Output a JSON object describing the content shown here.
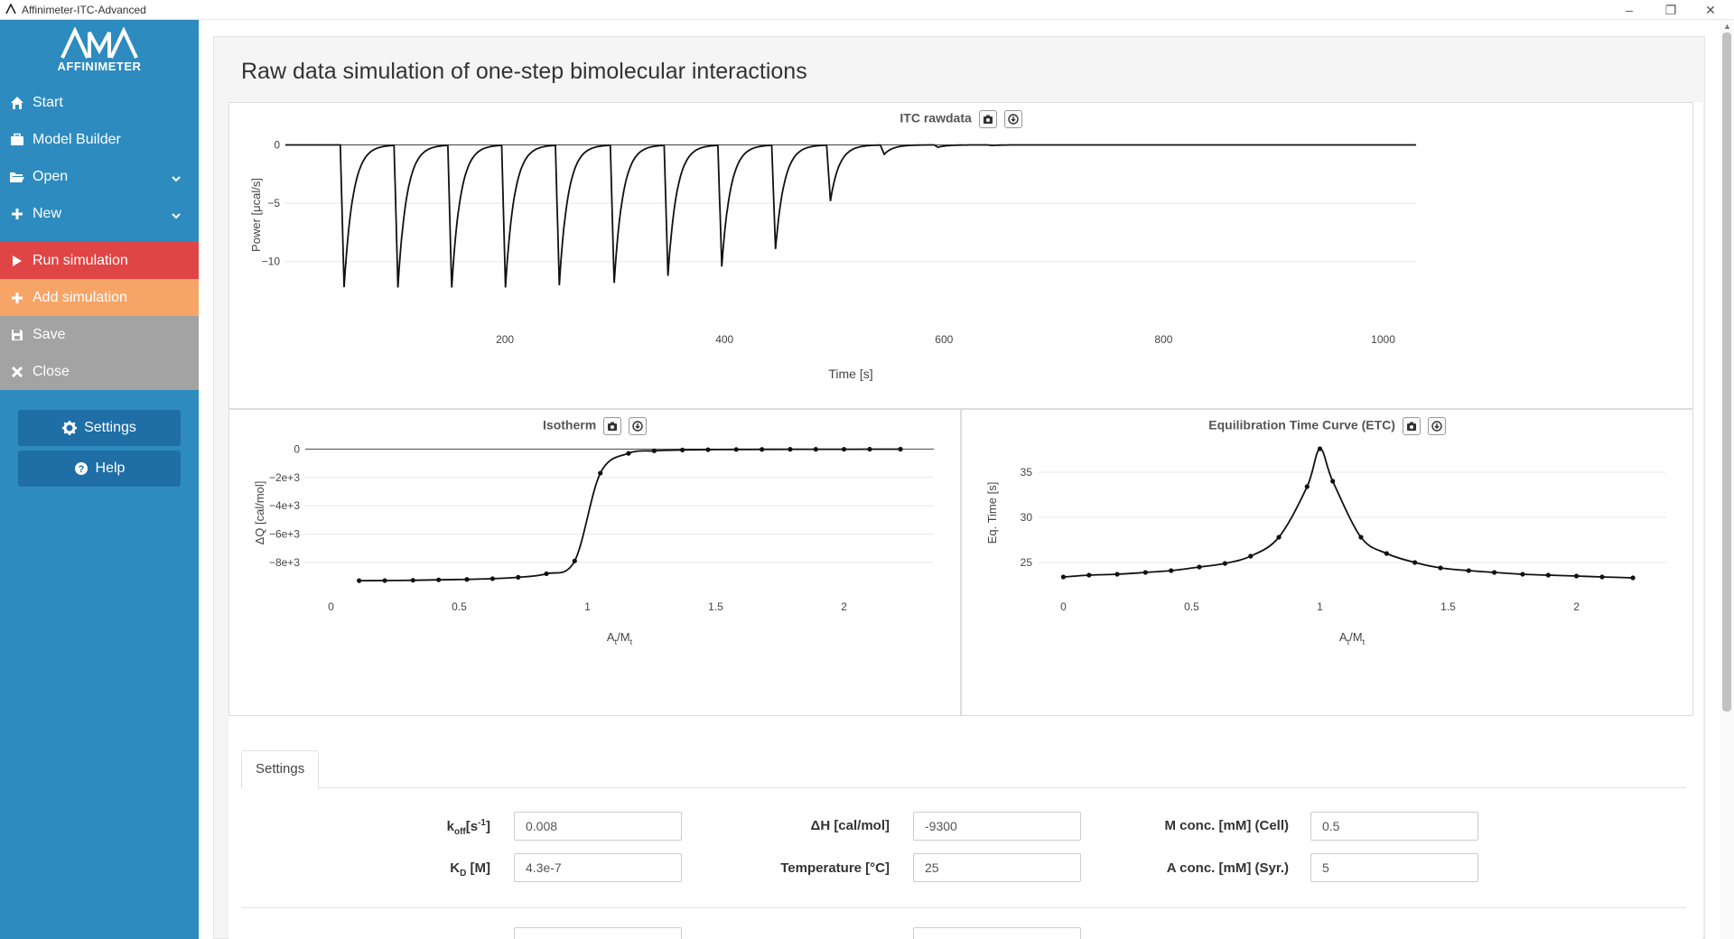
{
  "window": {
    "title": "Affinimeter-ITC-Advanced",
    "min": "–",
    "restore": "❐",
    "close": "✕"
  },
  "sidebar": {
    "brand": "AFFINIMETER",
    "items": [
      {
        "label": "Start",
        "icon": "home-icon"
      },
      {
        "label": "Model Builder",
        "icon": "briefcase-icon"
      },
      {
        "label": "Open",
        "icon": "folder-open-icon"
      },
      {
        "label": "New",
        "icon": "plus-icon"
      },
      {
        "label": "Run simulation",
        "icon": "play-icon"
      },
      {
        "label": "Add simulation",
        "icon": "plus-icon"
      },
      {
        "label": "Save",
        "icon": "floppy-icon"
      },
      {
        "label": "Close",
        "icon": "close-icon"
      }
    ],
    "settings_label": "Settings",
    "help_label": "Help"
  },
  "page": {
    "title": "Raw data simulation of one-step bimolecular interactions"
  },
  "plots": {
    "rawdata_title": "ITC rawdata",
    "isotherm_title": "Isotherm",
    "etc_title": "Equilibration Time Curve (ETC)"
  },
  "chart_data": [
    {
      "type": "line",
      "title": "ITC rawdata",
      "xlabel": "Time [s]",
      "ylabel": "Power [μcal/s]",
      "xlim": [
        0,
        1030
      ],
      "ylim": [
        -12.5,
        0.5
      ],
      "xticks": [
        200,
        400,
        600,
        800,
        1000
      ],
      "yticks": [
        0,
        -5,
        -10
      ],
      "ytick_labels": [
        "0",
        "−5",
        "−10"
      ],
      "injections": {
        "times": [
          50,
          99,
          148,
          197,
          246,
          296,
          345,
          394,
          443,
          493,
          542,
          591,
          640
        ],
        "peak_power": [
          -12.2,
          -12.2,
          -12.2,
          -12.2,
          -12.0,
          -11.8,
          -11.2,
          -10.4,
          -8.9,
          -4.8,
          -0.8,
          -0.2,
          -0.05
        ]
      }
    },
    {
      "type": "line",
      "title": "Isotherm",
      "xlabel": "At/Mt",
      "ylabel": "ΔQ [cal/mol]",
      "xlim": [
        -0.1,
        2.35
      ],
      "ylim": [
        -9600,
        600
      ],
      "xticks": [
        0,
        0.5,
        1,
        1.5,
        2
      ],
      "xtick_labels": [
        "0",
        "0.5",
        "1",
        "1.5",
        "2"
      ],
      "yticks": [
        0,
        -2000,
        -4000,
        -6000,
        -8000
      ],
      "ytick_labels": [
        "0",
        "−2e+3",
        "−4e+3",
        "−6e+3",
        "−8e+3"
      ],
      "series": [
        {
          "x": [
            0.11,
            0.21,
            0.32,
            0.42,
            0.53,
            0.63,
            0.73,
            0.84,
            0.95,
            1.05,
            1.16,
            1.26,
            1.37,
            1.47,
            1.58,
            1.68,
            1.79,
            1.89,
            2.0,
            2.1,
            2.22
          ],
          "y": [
            -9290,
            -9280,
            -9260,
            -9230,
            -9200,
            -9150,
            -9050,
            -8800,
            -7900,
            -1700,
            -300,
            -120,
            -60,
            -40,
            -25,
            -20,
            -15,
            -12,
            -10,
            -8,
            -5
          ]
        }
      ]
    },
    {
      "type": "line",
      "title": "Equilibration Time Curve (ETC)",
      "xlabel": "At/Mt",
      "ylabel": "Eq. Time [s]",
      "xlim": [
        -0.1,
        2.35
      ],
      "ylim": [
        22.5,
        38.5
      ],
      "xticks": [
        0,
        0.5,
        1,
        1.5,
        2
      ],
      "xtick_labels": [
        "0",
        "0.5",
        "1",
        "1.5",
        "2"
      ],
      "yticks": [
        25,
        30,
        35
      ],
      "series": [
        {
          "x": [
            0.0,
            0.1,
            0.21,
            0.32,
            0.42,
            0.53,
            0.63,
            0.73,
            0.84,
            0.95,
            1.0,
            1.05,
            1.16,
            1.26,
            1.37,
            1.47,
            1.58,
            1.68,
            1.79,
            1.89,
            2.0,
            2.1,
            2.22
          ],
          "y": [
            23.4,
            23.6,
            23.7,
            23.9,
            24.1,
            24.5,
            24.9,
            25.7,
            27.8,
            33.4,
            37.6,
            34.0,
            27.8,
            26.0,
            25.0,
            24.4,
            24.1,
            23.9,
            23.7,
            23.6,
            23.5,
            23.4,
            23.3
          ]
        }
      ]
    }
  ],
  "settings": {
    "tab_label": "Settings",
    "fields": [
      {
        "label_main": "k",
        "label_sub": "off",
        "label_rest": "[s",
        "label_sup": "-1",
        "label_end": "]",
        "value": "0.008"
      },
      {
        "label_main": "ΔH [cal/mol]",
        "value": "-9300"
      },
      {
        "label_main": "M conc. [mM] (Cell)",
        "value": "0.5"
      },
      {
        "label_main": "K",
        "label_sub": "D",
        "label_rest": " [M]",
        "value": "4.3e-7"
      },
      {
        "label_main": "Temperature [°C]",
        "value": "25"
      },
      {
        "label_main": "A conc. [mM] (Syr.)",
        "value": "5"
      }
    ]
  }
}
